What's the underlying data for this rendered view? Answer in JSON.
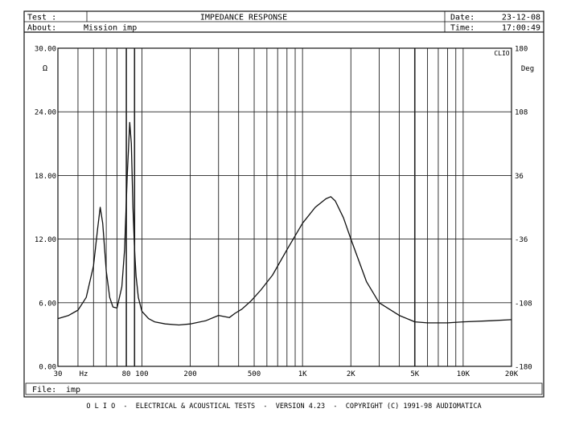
{
  "header": {
    "test_label": "Test :",
    "about_label": "About:",
    "about_value": "Mission imp",
    "title": "IMPEDANCE RESPONSE",
    "date_label": "Date:",
    "date_value": "23-12-08",
    "time_label": "Time:",
    "time_value": "17:00:49"
  },
  "file": {
    "label": "File:",
    "value": "imp"
  },
  "footer": {
    "text": "O L I O  -  ELECTRICAL & ACOUSTICAL TESTS  -  VERSION 4.23  -  COPYRIGHT (C) 1991-98 AUDIOMATICA"
  },
  "chart_data": {
    "type": "line",
    "title": "IMPEDANCE RESPONSE",
    "xlabel": "Hz",
    "x_scale": "log",
    "xlim": [
      30,
      20000
    ],
    "x_ticks": [
      30,
      80,
      100,
      200,
      500,
      1000,
      2000,
      5000,
      10000,
      20000
    ],
    "x_tick_labels": [
      "30",
      "80",
      "100",
      "200",
      "500",
      "1K",
      "2K",
      "5K",
      "10K",
      "20K"
    ],
    "ylabel_left": "Ω",
    "ylim": [
      0,
      30
    ],
    "y_ticks": [
      0,
      6,
      12,
      18,
      24,
      30
    ],
    "y_tick_labels": [
      "0.00",
      "6.00",
      "12.00",
      "18.00",
      "24.00",
      "30.00"
    ],
    "ylabel_right": "Deg",
    "y2lim": [
      -180,
      180
    ],
    "y2_ticks": [
      -180,
      -108,
      -36,
      36,
      108,
      180
    ],
    "y2_tick_labels": [
      "-180",
      "-108",
      "-36",
      "36",
      "108",
      "180"
    ],
    "corner_label": "CLIO",
    "grid": true,
    "colors": {
      "curve": "#111111",
      "grid": "#222222",
      "frame": "#111111"
    },
    "series": [
      {
        "x": [
          30,
          35,
          40,
          45,
          50,
          53,
          55,
          57,
          60,
          63,
          66,
          70,
          75,
          78,
          81,
          84,
          86,
          88,
          90,
          92,
          95,
          100,
          110,
          120,
          140,
          170,
          200,
          250,
          300,
          350,
          380,
          420,
          480,
          550,
          650,
          800,
          1000,
          1200,
          1400,
          1500,
          1600,
          1800,
          2000,
          2500,
          3000,
          4000,
          5000,
          6000,
          8000,
          10000,
          15000,
          20000
        ],
        "y": [
          4.5,
          4.8,
          5.3,
          6.5,
          9.5,
          13.0,
          15.0,
          13.5,
          9.0,
          6.5,
          5.6,
          5.5,
          7.5,
          11.0,
          18.0,
          23.0,
          21.0,
          15.0,
          11.0,
          8.5,
          6.5,
          5.2,
          4.5,
          4.2,
          4.0,
          3.9,
          4.0,
          4.3,
          4.8,
          4.6,
          5.0,
          5.4,
          6.2,
          7.2,
          8.6,
          11.0,
          13.5,
          15.0,
          15.8,
          16.0,
          15.6,
          14.0,
          12.0,
          8.0,
          6.0,
          4.8,
          4.2,
          4.1,
          4.1,
          4.2,
          4.3,
          4.4
        ]
      }
    ]
  }
}
